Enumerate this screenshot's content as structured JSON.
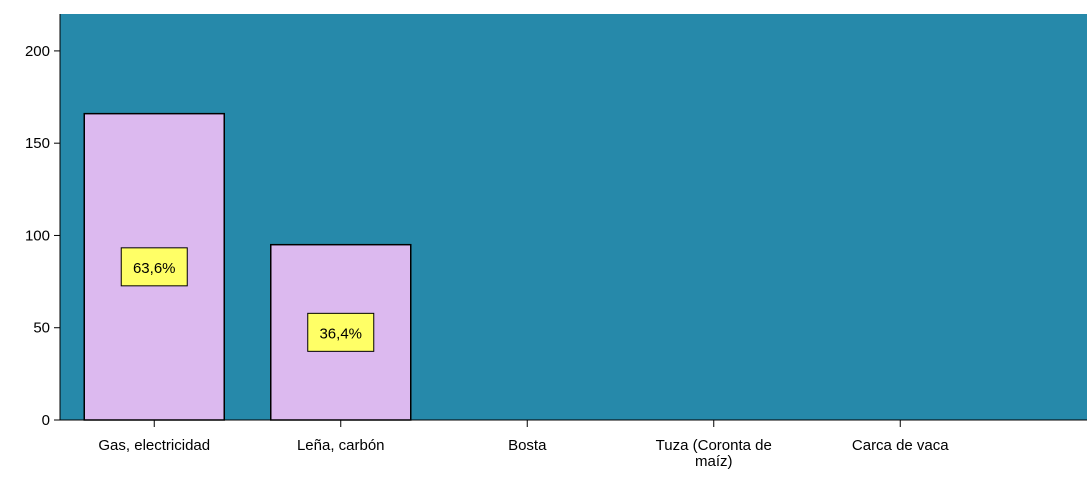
{
  "chart_data": {
    "type": "bar",
    "categories": [
      "Gas, electricidad",
      "Leña, carbón",
      "Bosta",
      "Tuza (Coronta de maíz)",
      "Carca de vaca"
    ],
    "category_label_lines": [
      [
        "Gas, electricidad"
      ],
      [
        "Leña, carbón"
      ],
      [
        "Bosta"
      ],
      [
        "Tuza (Coronta de",
        "maíz)"
      ],
      [
        "Carca de vaca"
      ]
    ],
    "values": [
      166,
      95,
      0,
      0,
      0
    ],
    "data_labels": [
      "63,6%",
      "36,4%",
      "",
      "",
      ""
    ],
    "ylim": [
      0,
      220
    ],
    "yticks": [
      0,
      50,
      100,
      150,
      200
    ],
    "ytick_labels": [
      "0",
      "50",
      "100",
      "150",
      "200"
    ],
    "title": "",
    "xlabel": "",
    "ylabel": "",
    "grid": false,
    "colors": {
      "plot_background": "#2689aa",
      "bar_fill": "#dcb9ef",
      "bar_stroke": "#000000",
      "label_fill": "#ffff66",
      "axis": "#000000"
    }
  }
}
